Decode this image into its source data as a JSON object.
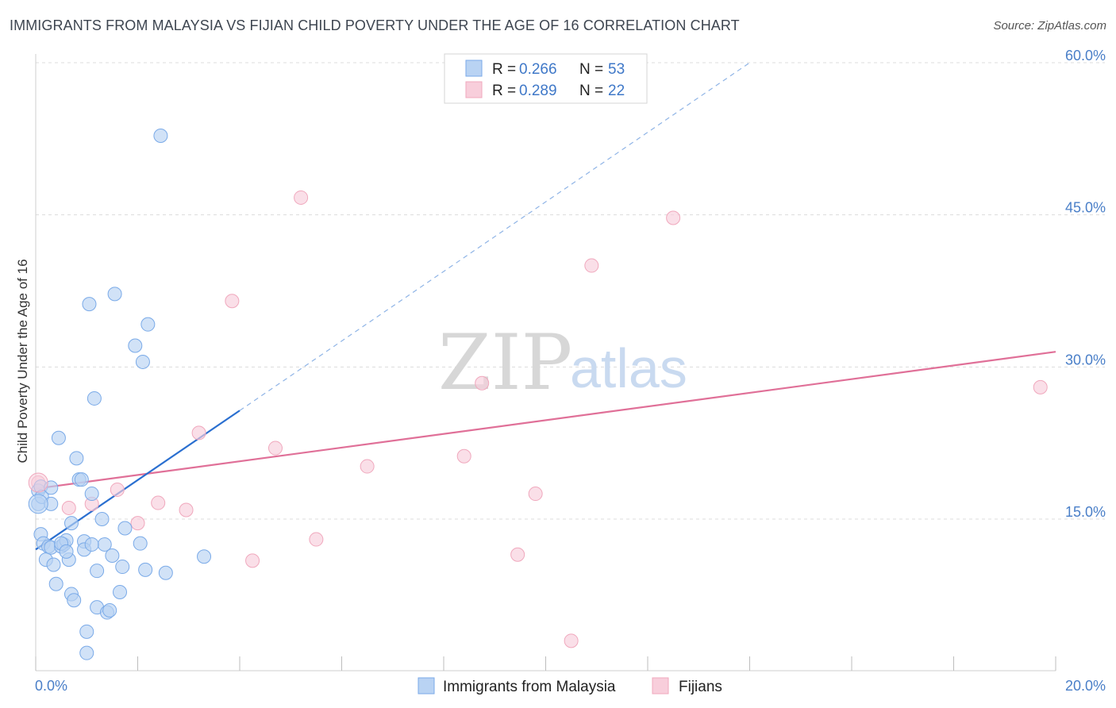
{
  "header": {
    "title": "IMMIGRANTS FROM MALAYSIA VS FIJIAN CHILD POVERTY UNDER THE AGE OF 16 CORRELATION CHART",
    "source": "Source: ZipAtlas.com"
  },
  "watermark": {
    "zip": "ZIP",
    "atlas": "atlas"
  },
  "legend": {
    "rows": [
      {
        "r_label": "R = ",
        "r_value": "0.266",
        "n_label": "N = ",
        "n_value": "53"
      },
      {
        "r_label": "R = ",
        "r_value": "0.289",
        "n_label": "N = ",
        "n_value": "22"
      }
    ]
  },
  "chart_data": {
    "type": "scatter",
    "title": "IMMIGRANTS FROM MALAYSIA VS FIJIAN CHILD POVERTY UNDER THE AGE OF 16 CORRELATION CHART",
    "xlabel": "",
    "ylabel": "Child Poverty Under the Age of 16",
    "xlim": [
      0,
      20
    ],
    "ylim": [
      0,
      62
    ],
    "x_tick_labels": [
      {
        "value": 0,
        "label": "0.0%"
      },
      {
        "value": 20,
        "label": "20.0%"
      }
    ],
    "y_tick_labels": [
      {
        "value": 15,
        "label": "15.0%"
      },
      {
        "value": 30,
        "label": "30.0%"
      },
      {
        "value": 45,
        "label": "45.0%"
      },
      {
        "value": 60,
        "label": "60.0%"
      }
    ],
    "series": [
      {
        "name": "Immigrants from Malaysia",
        "color": "#7aaae8",
        "fill": "#b9d3f3",
        "line_color": "#2a6fd0",
        "points": [
          [
            0.05,
            16.5
          ],
          [
            0.05,
            17.8
          ],
          [
            0.1,
            13.5
          ],
          [
            0.1,
            18.2
          ],
          [
            0.12,
            17.2
          ],
          [
            0.15,
            12.6
          ],
          [
            0.2,
            11.0
          ],
          [
            0.25,
            12.3
          ],
          [
            0.3,
            18.1
          ],
          [
            0.3,
            16.5
          ],
          [
            0.3,
            12.2
          ],
          [
            0.35,
            10.5
          ],
          [
            0.4,
            8.6
          ],
          [
            0.45,
            23.0
          ],
          [
            0.5,
            12.3
          ],
          [
            0.55,
            12.5
          ],
          [
            0.6,
            12.9
          ],
          [
            0.65,
            11.0
          ],
          [
            0.7,
            14.6
          ],
          [
            0.7,
            7.6
          ],
          [
            0.75,
            7.0
          ],
          [
            0.8,
            21.0
          ],
          [
            0.85,
            18.9
          ],
          [
            0.9,
            18.9
          ],
          [
            0.95,
            12.8
          ],
          [
            0.95,
            12.0
          ],
          [
            1.0,
            3.9
          ],
          [
            1.0,
            1.8
          ],
          [
            1.05,
            36.2
          ],
          [
            1.1,
            17.5
          ],
          [
            1.2,
            9.9
          ],
          [
            1.2,
            6.3
          ],
          [
            1.3,
            15.0
          ],
          [
            1.35,
            12.5
          ],
          [
            1.4,
            5.8
          ],
          [
            1.45,
            6.0
          ],
          [
            1.5,
            11.4
          ],
          [
            1.55,
            37.2
          ],
          [
            1.65,
            7.8
          ],
          [
            1.7,
            10.3
          ],
          [
            1.75,
            14.1
          ],
          [
            1.95,
            32.1
          ],
          [
            2.05,
            12.6
          ],
          [
            2.1,
            30.5
          ],
          [
            2.15,
            10.0
          ],
          [
            2.2,
            34.2
          ],
          [
            2.45,
            52.8
          ],
          [
            2.55,
            9.7
          ],
          [
            3.3,
            11.3
          ],
          [
            1.15,
            26.9
          ],
          [
            0.5,
            12.6
          ],
          [
            0.6,
            11.8
          ],
          [
            1.1,
            12.5
          ]
        ],
        "trendline": {
          "x": [
            0,
            4.0
          ],
          "y": [
            12.0,
            25.7
          ]
        },
        "trendline_extended": {
          "x": [
            4.0,
            14.0
          ],
          "y": [
            25.7,
            60.0
          ]
        }
      },
      {
        "name": "Fijians",
        "color": "#f0a8bd",
        "fill": "#f8cedb",
        "line_color": "#e07098",
        "points": [
          [
            0.05,
            18.6
          ],
          [
            0.65,
            16.1
          ],
          [
            1.1,
            16.5
          ],
          [
            1.6,
            17.9
          ],
          [
            2.0,
            14.6
          ],
          [
            2.4,
            16.6
          ],
          [
            2.95,
            15.9
          ],
          [
            3.2,
            23.5
          ],
          [
            3.85,
            36.5
          ],
          [
            4.25,
            10.9
          ],
          [
            4.7,
            22.0
          ],
          [
            5.2,
            46.7
          ],
          [
            5.5,
            13.0
          ],
          [
            6.5,
            20.2
          ],
          [
            8.75,
            28.4
          ],
          [
            8.4,
            21.2
          ],
          [
            9.45,
            11.5
          ],
          [
            9.8,
            17.5
          ],
          [
            10.5,
            3.0
          ],
          [
            10.9,
            40.0
          ],
          [
            12.5,
            44.7
          ],
          [
            19.7,
            28.0
          ]
        ],
        "trendline": {
          "x": [
            0,
            20
          ],
          "y": [
            18.0,
            31.5
          ]
        }
      }
    ],
    "legend_position": "top-center",
    "grid": true
  },
  "bottom_legend": {
    "items": [
      {
        "label": "Immigrants from Malaysia"
      },
      {
        "label": "Fijians"
      }
    ]
  }
}
